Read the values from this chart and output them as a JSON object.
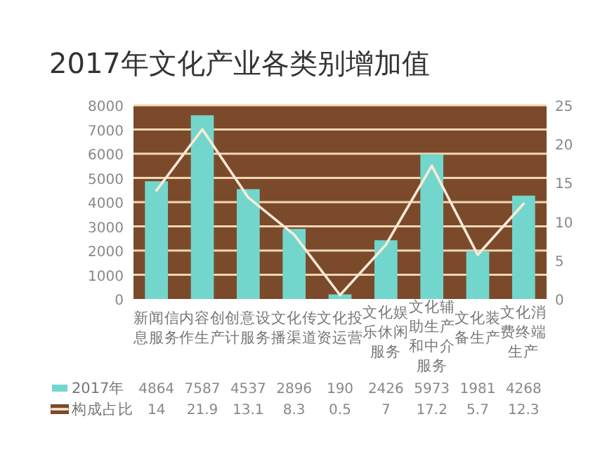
{
  "chart_data": {
    "type": "bar",
    "title": "2017年文化产业各类别增加值",
    "categories": [
      "新闻信息服务",
      "内容创作生产",
      "创意设计服务",
      "文化传播渠道",
      "文化投资运营",
      "文化娱乐休闲服务",
      "文化辅助生产和中介服务",
      "文化装备生产",
      "文化消费终端生产"
    ],
    "series": [
      {
        "name": "2017年",
        "color": "#72d6cd",
        "values": [
          4864,
          7587,
          4537,
          2896,
          190,
          2426,
          5973,
          1981,
          4268
        ]
      },
      {
        "name": "构成占比",
        "type": "line",
        "axis": "y2",
        "color": "#fbe9d7",
        "values": [
          14,
          21.9,
          13.1,
          8.3,
          0.5,
          7,
          17.2,
          5.7,
          12.3
        ]
      }
    ],
    "ylim": [
      0,
      8000
    ],
    "yticks": [
      0,
      1000,
      2000,
      3000,
      4000,
      5000,
      6000,
      7000,
      8000
    ],
    "y2lim": [
      0,
      25
    ],
    "y2ticks": [
      0,
      5,
      10,
      15,
      20,
      25
    ],
    "grid": "y",
    "legend": "bottom",
    "data_labels": true
  }
}
